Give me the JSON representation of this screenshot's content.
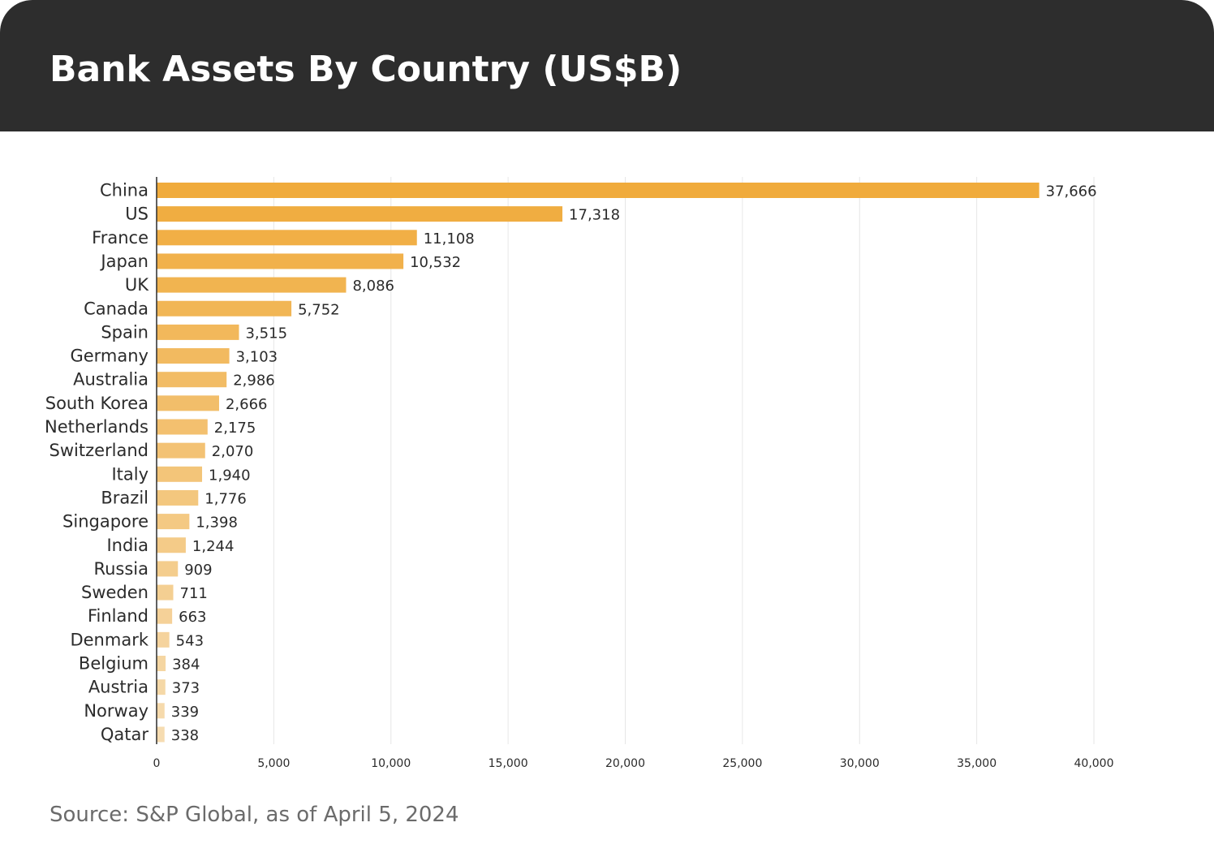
{
  "header": {
    "title": "Bank Assets By Country (US$B)"
  },
  "footer": {
    "source": "Source: S&P Global, as of April 5, 2024"
  },
  "colors": {
    "header_background": "#2d2d2d",
    "bar_top": "#f0ab3c",
    "bar_light": "#f6dcb1",
    "gridline": "#e6e6e6",
    "axis": "#2b2b2b"
  },
  "chart_data": {
    "type": "bar",
    "orientation": "horizontal",
    "title": "Bank Assets By Country (US$B)",
    "xlabel": "",
    "ylabel": "",
    "xlim": [
      0,
      40000
    ],
    "xticks": [
      0,
      5000,
      10000,
      15000,
      20000,
      25000,
      30000,
      35000,
      40000
    ],
    "xtick_labels": [
      "0",
      "5,000",
      "10,000",
      "15,000",
      "20,000",
      "25,000",
      "30,000",
      "35,000",
      "40,000"
    ],
    "grid": "vertical",
    "legend": "none",
    "categories": [
      "China",
      "US",
      "France",
      "Japan",
      "UK",
      "Canada",
      "Spain",
      "Germany",
      "Australia",
      "South Korea",
      "Netherlands",
      "Switzerland",
      "Italy",
      "Brazil",
      "Singapore",
      "India",
      "Russia",
      "Sweden",
      "Finland",
      "Denmark",
      "Belgium",
      "Austria",
      "Norway",
      "Qatar"
    ],
    "values": [
      37666,
      17318,
      11108,
      10532,
      8086,
      5752,
      3515,
      3103,
      2986,
      2666,
      2175,
      2070,
      1940,
      1776,
      1398,
      1244,
      909,
      711,
      663,
      543,
      384,
      373,
      339,
      338
    ],
    "value_labels": [
      "37,666",
      "17,318",
      "11,108",
      "10,532",
      "8,086",
      "5,752",
      "3,515",
      "3,103",
      "2,986",
      "2,666",
      "2,175",
      "2,070",
      "1,940",
      "1,776",
      "1,398",
      "1,244",
      "909",
      "711",
      "663",
      "543",
      "384",
      "373",
      "339",
      "338"
    ]
  }
}
